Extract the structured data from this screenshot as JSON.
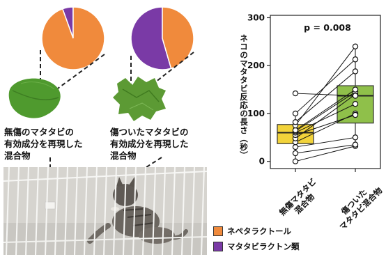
{
  "colors": {
    "nepetalactol": "#f08a3c",
    "matatabilactones": "#7a3aa6",
    "box_intact": "#f2d33a",
    "box_damaged": "#8fc04a",
    "leaf_intact": "#4f9a2e",
    "leaf_damaged": "#5c9a34"
  },
  "pies": [
    {
      "name": "intact",
      "fractions": {
        "nepetalactol": 0.945,
        "matatabilactones": 0.055
      }
    },
    {
      "name": "damaged",
      "fractions": {
        "nepetalactol": 0.455,
        "matatabilactones": 0.545
      }
    }
  ],
  "labels": {
    "intact_mixture": "無傷のマタタビの\n有効成分を再現した\n混合物",
    "damaged_mixture": "傷ついたマタタビの\n有効成分を再現した\n混合物"
  },
  "legend": [
    {
      "label": "ネペタラクトール",
      "color_key": "nepetalactol"
    },
    {
      "label": "マタタビラクトン類",
      "color_key": "matatabilactones"
    }
  ],
  "chart_data": {
    "type": "box",
    "ylabel": "ネコのマタタビ反応の長さ（秒）",
    "yticks": [
      0,
      100,
      200,
      300
    ],
    "ylim": [
      -15,
      305
    ],
    "annotation": "p = 0.008",
    "categories": [
      "無傷マタタビ\n混合物",
      "傷ついた\nマタタビ混合物"
    ],
    "boxes": [
      {
        "q1": 37,
        "median": 60,
        "q3": 77,
        "whisker_low": 0,
        "whisker_high": 100
      },
      {
        "q1": 80,
        "median": 137,
        "q3": 158,
        "whisker_low": 32,
        "whisker_high": 240
      }
    ],
    "paired_values": [
      [
        0,
        32
      ],
      [
        17,
        35
      ],
      [
        30,
        50
      ],
      [
        40,
        100
      ],
      [
        48,
        140
      ],
      [
        55,
        97
      ],
      [
        60,
        120
      ],
      [
        63,
        145
      ],
      [
        65,
        150
      ],
      [
        75,
        240
      ],
      [
        82,
        188
      ],
      [
        100,
        213
      ],
      [
        142,
        137
      ]
    ]
  }
}
